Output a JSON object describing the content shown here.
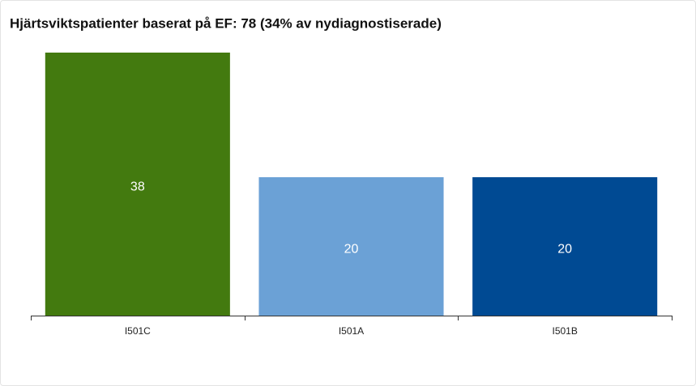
{
  "chart_data": {
    "type": "bar",
    "title": "Hjärtsviktspatienter baserat på EF: 78 (34% av nydiagnostiserade)",
    "categories": [
      "I501C",
      "I501A",
      "I501B"
    ],
    "values": [
      38,
      20,
      20
    ],
    "colors": [
      "#437a0f",
      "#6ba1d6",
      "#004a93"
    ]
  }
}
